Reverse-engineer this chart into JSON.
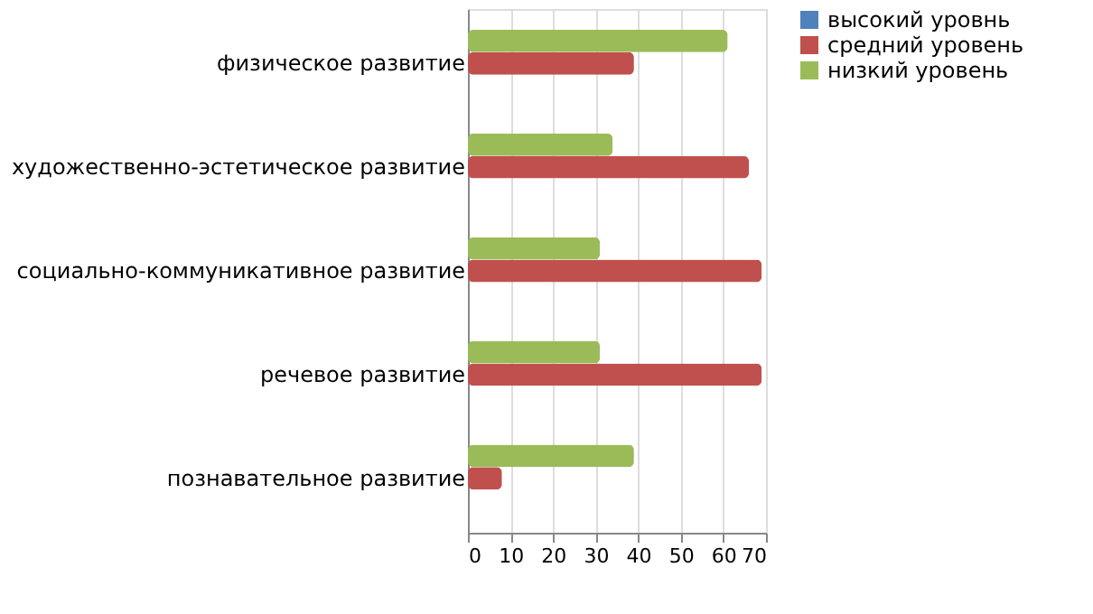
{
  "chart_data": {
    "type": "bar",
    "orientation": "horizontal",
    "categories": [
      "физическое развитие",
      "художественно-эстетическое развитие",
      "социально-коммуникативное развитие",
      "речевое развитие",
      "познавательное развитие"
    ],
    "series": [
      {
        "name": "высокий уровнь",
        "color": "#4f81bd",
        "values": [
          0,
          0,
          0,
          0,
          0
        ]
      },
      {
        "name": "средний уровень",
        "color": "#c0504d",
        "values": [
          39,
          66,
          69,
          69,
          8
        ]
      },
      {
        "name": "низкий уровень",
        "color": "#9bbb59",
        "values": [
          61,
          34,
          31,
          31,
          39
        ]
      }
    ],
    "xlim": [
      0,
      70
    ],
    "xticks": [
      0,
      10,
      20,
      30,
      40,
      50,
      60,
      70
    ],
    "grid": "x",
    "legend": "right"
  }
}
